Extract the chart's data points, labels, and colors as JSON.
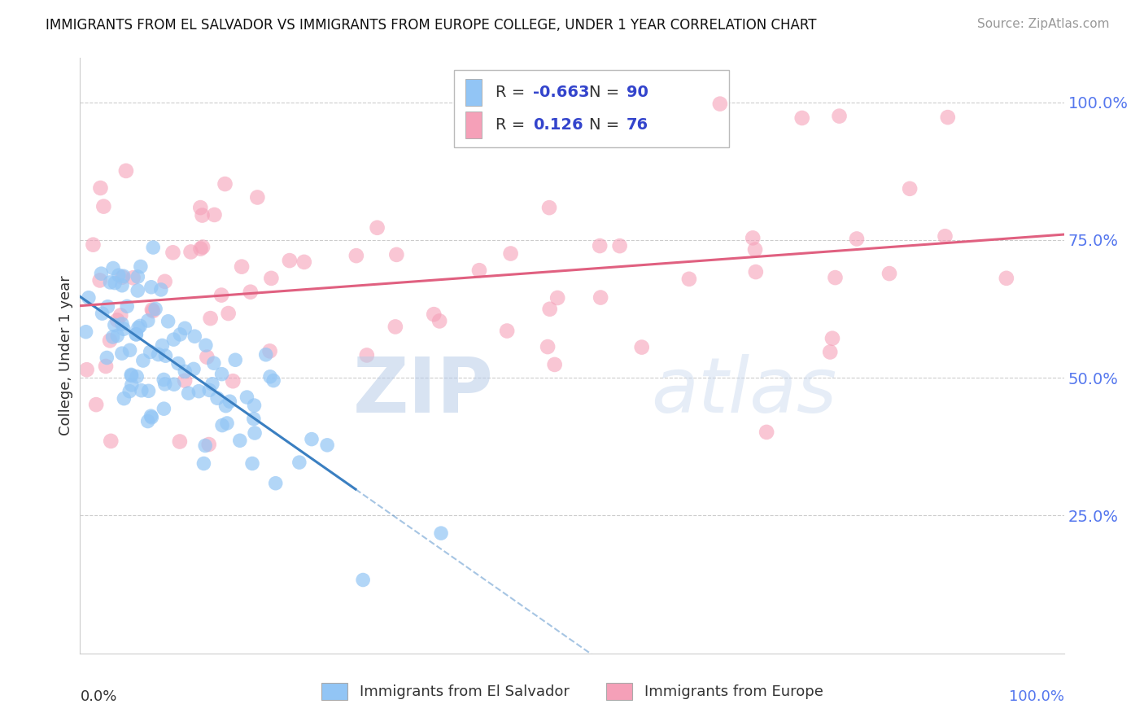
{
  "title": "IMMIGRANTS FROM EL SALVADOR VS IMMIGRANTS FROM EUROPE COLLEGE, UNDER 1 YEAR CORRELATION CHART",
  "source": "Source: ZipAtlas.com",
  "ylabel": "College, Under 1 year",
  "legend_label_blue": "Immigrants from El Salvador",
  "legend_label_pink": "Immigrants from Europe",
  "R_blue": -0.663,
  "N_blue": 90,
  "R_pink": 0.126,
  "N_pink": 76,
  "xlim": [
    0.0,
    1.0
  ],
  "ylim": [
    0.0,
    1.08
  ],
  "yticks": [
    0.25,
    0.5,
    0.75,
    1.0
  ],
  "ytick_labels": [
    "25.0%",
    "50.0%",
    "75.0%",
    "100.0%"
  ],
  "color_blue": "#92c5f5",
  "color_pink": "#f5a0b8",
  "line_color_blue": "#3a7fc1",
  "line_color_pink": "#e06080",
  "watermark_zip": "ZIP",
  "watermark_atlas": "atlas",
  "background_color": "#ffffff",
  "grid_color": "#cccccc",
  "tick_color": "#5577ee",
  "text_color": "#333333",
  "source_color": "#999999"
}
